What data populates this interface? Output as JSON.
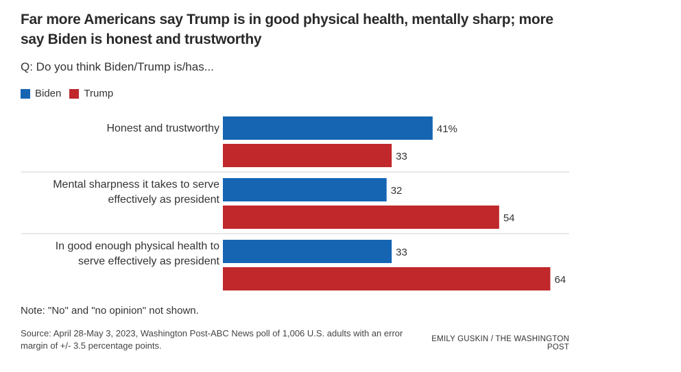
{
  "chart_data": {
    "type": "bar",
    "orientation": "horizontal",
    "title": "Far more Americans say Trump is in good physical health, mentally sharp; more say Biden is honest and trustworthy",
    "subtitle": "Q: Do you think Biden/Trump is/has...",
    "categories": [
      [
        "Honest and trustworthy"
      ],
      [
        "Mental sharpness it takes to serve",
        "effectively as president"
      ],
      [
        "In good enough physical health to",
        "serve effectively as president"
      ]
    ],
    "series": [
      {
        "name": "Biden",
        "color": "#1565b3",
        "values": [
          41,
          32,
          33
        ]
      },
      {
        "name": "Trump",
        "color": "#c0282b",
        "values": [
          33,
          54,
          64
        ]
      }
    ],
    "value_labels": [
      [
        "41%",
        "32",
        "33"
      ],
      [
        "33",
        "54",
        "64"
      ]
    ],
    "xlim": [
      0,
      70
    ],
    "unit": "%",
    "legend_position": "top-left",
    "grid": false
  },
  "legend": [
    {
      "label": "Biden",
      "color": "#1565b3"
    },
    {
      "label": "Trump",
      "color": "#c0282b"
    }
  ],
  "note": "Note: \"No\" and \"no opinion\" not shown.",
  "source": "Source: April 28-May 3, 2023, Washington Post-ABC News poll of 1,006 U.S. adults with an error margin of +/- 3.5 percentage points.",
  "credit": "EMILY GUSKIN / THE WASHINGTON POST"
}
